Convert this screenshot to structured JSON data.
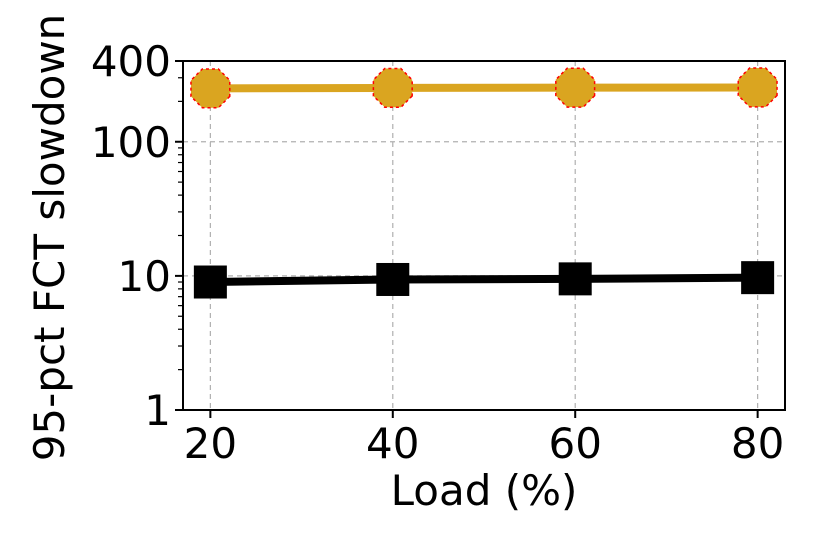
{
  "chart_data": {
    "type": "line",
    "title": "",
    "xlabel": "Load (%)",
    "ylabel": "95-pct FCT slowdown",
    "x": [
      20,
      40,
      60,
      80
    ],
    "xticks": [
      "20",
      "40",
      "60",
      "80"
    ],
    "xlim": [
      17,
      83
    ],
    "yscale": "log",
    "ylim": [
      1,
      400
    ],
    "yticks": [
      1,
      10,
      100,
      400
    ],
    "ytick_labels": [
      "1",
      "10",
      "100",
      "400"
    ],
    "grid": true,
    "legend": "none",
    "series": [
      {
        "values": [
          250,
          252,
          253,
          254
        ],
        "color": "#DAA520",
        "marker": "octagon",
        "marker_edge_color": "#FF0000"
      },
      {
        "values": [
          9.0,
          9.4,
          9.5,
          9.7
        ],
        "color": "#000000",
        "marker": "square",
        "marker_edge_color": "#000000"
      }
    ]
  }
}
